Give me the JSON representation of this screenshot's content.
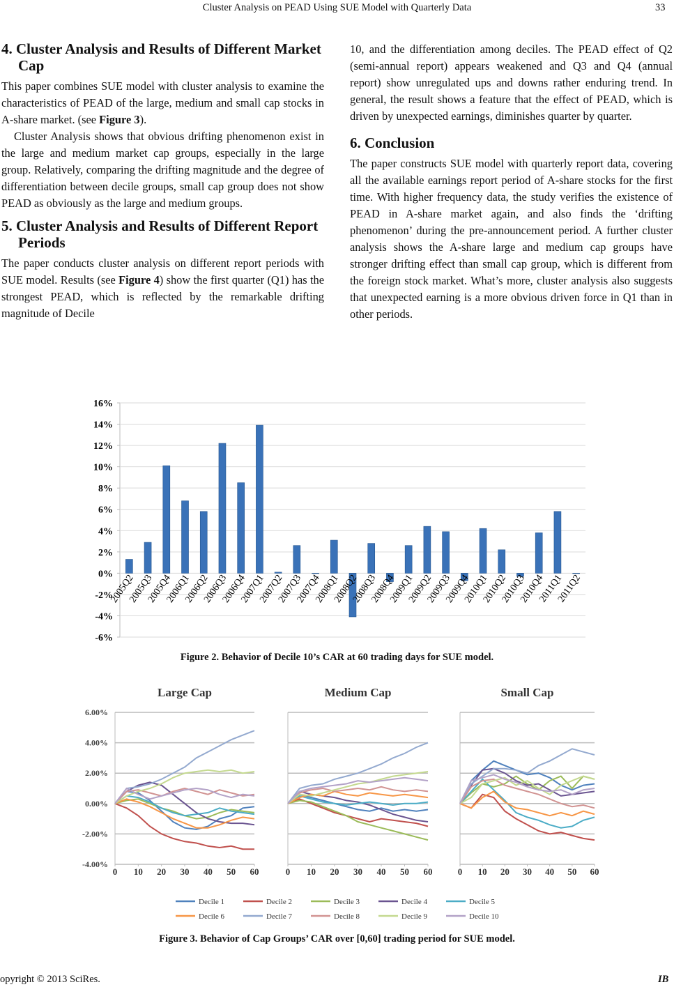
{
  "header": {
    "title": "Cluster Analysis on PEAD Using SUE Model with Quarterly Data",
    "page": "33"
  },
  "left_column": {
    "sections": [
      {
        "heading": "4. Cluster Analysis and Results of Different Market Cap",
        "paragraphs": [
          [
            "This paper combines SUE model with cluster analysis to examine the characteristics of PEAD of the large, medium and small cap stocks in A-share market. (see ",
            "Figure 3",
            ")."
          ],
          [
            "Cluster Analysis shows that obvious drifting phenomenon exist in the large and medium market cap groups, especially in the large group. Relatively, comparing the drifting magnitude and the degree of differentiation between decile groups, small cap group does not show PEAD as obviously as the large and medium groups."
          ]
        ]
      },
      {
        "heading": "5. Cluster Analysis and Results of Different Report Periods",
        "paragraphs": [
          [
            "The paper conducts cluster analysis on different report periods with SUE model. Results (see ",
            "Figure 4",
            ") show the first quarter (Q1) has the strongest PEAD, which is reflected by the remarkable drifting magnitude of Decile"
          ]
        ]
      }
    ]
  },
  "right_column": {
    "paragraphs": [
      [
        "10, and the differentiation among deciles. The PEAD effect of Q2 (semi-annual report) appears weakened and Q3 and Q4 (annual report) show unregulated ups and downs rather enduring trend. In general, the result shows a feature that the effect of PEAD, which is driven by unexpected earnings, diminishes quarter by quarter."
      ]
    ],
    "sections": [
      {
        "heading": "6. Conclusion",
        "paragraphs": [
          [
            "The paper constructs SUE model with quarterly report data, covering all the available earnings report period of A-share stocks for the first time. With higher frequency data, the study verifies the existence of PEAD in A-share market again, and also finds the ‘drifting phenomenon’ during the pre-announcement period. A further cluster analysis shows the A-share large and medium cap groups have stronger drifting effect than small cap group, which is different from the foreign stock market. What’s more, cluster analysis also suggests that unexpected earning is a more obvious driven force in Q1 than in other periods."
          ]
        ]
      }
    ]
  },
  "chart_data": [
    {
      "type": "bar",
      "color": "#3a72b8",
      "categories": [
        "2005Q2",
        "2005Q3",
        "2005Q4",
        "2006Q1",
        "2006Q2",
        "2006Q3",
        "2006Q4",
        "2007Q1",
        "2007Q2",
        "2007Q3",
        "2007Q4",
        "2008Q1",
        "2008Q2",
        "2008Q3",
        "2008Q4",
        "2009Q1",
        "2009Q2",
        "2009Q3",
        "2009Q4",
        "2010Q1",
        "2010Q2",
        "2010Q3",
        "2010Q4",
        "2011Q1",
        "2011Q2"
      ],
      "values": [
        1.3,
        2.9,
        10.1,
        6.8,
        5.8,
        12.2,
        8.5,
        13.9,
        0.1,
        2.6,
        0.0,
        3.1,
        -4.1,
        2.8,
        -0.8,
        2.6,
        4.4,
        3.9,
        -0.7,
        4.2,
        2.2,
        -0.3,
        3.8,
        5.8,
        0.0
      ],
      "ylim": [
        -6,
        16
      ],
      "yticks": [
        {
          "value": -6,
          "label": "-6%"
        },
        {
          "value": -4,
          "label": "-4%"
        },
        {
          "value": -2,
          "label": "-2%"
        },
        {
          "value": 0,
          "label": "0%"
        },
        {
          "value": 2,
          "label": "2%"
        },
        {
          "value": 4,
          "label": "4%"
        },
        {
          "value": 6,
          "label": "6%"
        },
        {
          "value": 8,
          "label": "8%"
        },
        {
          "value": 10,
          "label": "10%"
        },
        {
          "value": 12,
          "label": "12%"
        },
        {
          "value": 14,
          "label": "14%"
        },
        {
          "value": 16,
          "label": "16%"
        }
      ],
      "grid": true
    },
    {
      "type": "line",
      "title": "Large Cap",
      "x": [
        0,
        5,
        10,
        15,
        20,
        25,
        30,
        35,
        40,
        45,
        50,
        55,
        60
      ],
      "xlim": [
        0,
        60
      ],
      "xticks": [
        0,
        10,
        20,
        30,
        40,
        50,
        60
      ],
      "ylim": [
        -4,
        6
      ],
      "yticks": [
        {
          "value": -4,
          "label": "-4.00%"
        },
        {
          "value": -2,
          "label": "-2.00%"
        },
        {
          "value": 0,
          "label": "0.00%"
        },
        {
          "value": 2,
          "label": "2.00%"
        },
        {
          "value": 4,
          "label": "4.00%"
        },
        {
          "value": 6,
          "label": "6.00%"
        }
      ],
      "ytick_labels": true,
      "grid": true,
      "series": [
        {
          "values": [
            0,
            0.8,
            0.7,
            0.2,
            -0.5,
            -1.2,
            -1.6,
            -1.7,
            -1.5,
            -1.0,
            -0.8,
            -0.3,
            -0.2
          ]
        },
        {
          "values": [
            0,
            -0.3,
            -0.8,
            -1.5,
            -2.0,
            -2.3,
            -2.5,
            -2.6,
            -2.8,
            -2.9,
            -2.8,
            -3.0,
            -3.0
          ]
        },
        {
          "values": [
            0,
            0.2,
            0.3,
            0.0,
            -0.3,
            -0.5,
            -0.8,
            -1.0,
            -0.9,
            -0.6,
            -0.4,
            -0.5,
            -0.6
          ]
        },
        {
          "values": [
            0,
            0.8,
            1.2,
            1.4,
            1.2,
            0.6,
            0.0,
            -0.6,
            -1.0,
            -1.2,
            -1.3,
            -1.3,
            -1.4
          ]
        },
        {
          "values": [
            0,
            0.5,
            0.4,
            0.1,
            -0.3,
            -0.6,
            -0.8,
            -0.7,
            -0.6,
            -0.3,
            -0.5,
            -0.6,
            -0.7
          ]
        },
        {
          "values": [
            0,
            0.3,
            0.1,
            -0.2,
            -0.6,
            -1.0,
            -1.3,
            -1.6,
            -1.6,
            -1.4,
            -1.1,
            -0.9,
            -1.0
          ]
        },
        {
          "values": [
            0,
            1.0,
            1.1,
            1.3,
            1.6,
            2.0,
            2.4,
            3.0,
            3.4,
            3.8,
            4.2,
            4.5,
            4.8
          ]
        },
        {
          "values": [
            0,
            0.8,
            0.9,
            0.7,
            0.5,
            0.8,
            1.0,
            0.8,
            0.6,
            0.9,
            0.7,
            0.5,
            0.6
          ]
        },
        {
          "values": [
            0,
            0.5,
            0.8,
            1.0,
            1.3,
            1.7,
            2.0,
            2.1,
            2.2,
            2.1,
            2.2,
            2.0,
            2.1
          ]
        },
        {
          "values": [
            0,
            1.0,
            0.6,
            0.3,
            0.5,
            0.7,
            0.9,
            1.0,
            0.9,
            0.6,
            0.4,
            0.6,
            0.5
          ]
        }
      ]
    },
    {
      "type": "line",
      "title": "Medium Cap",
      "x": [
        0,
        5,
        10,
        15,
        20,
        25,
        30,
        35,
        40,
        45,
        50,
        55,
        60
      ],
      "xlim": [
        0,
        60
      ],
      "xticks": [
        0,
        10,
        20,
        30,
        40,
        50,
        60
      ],
      "ylim": [
        -4,
        6
      ],
      "yticks": [
        -4,
        -2,
        0,
        2,
        4,
        6
      ],
      "ytick_labels": false,
      "grid": true,
      "series": [
        {
          "values": [
            0,
            0.6,
            0.4,
            0.2,
            0.0,
            -0.2,
            -0.4,
            -0.5,
            -0.3,
            -0.5,
            -0.4,
            -0.5,
            -0.4
          ]
        },
        {
          "values": [
            0,
            0.3,
            0.0,
            -0.3,
            -0.6,
            -0.8,
            -1.0,
            -1.2,
            -1.0,
            -1.1,
            -1.2,
            -1.3,
            -1.5
          ]
        },
        {
          "values": [
            0,
            0.2,
            0.1,
            -0.2,
            -0.5,
            -0.8,
            -1.2,
            -1.4,
            -1.6,
            -1.8,
            -2.0,
            -2.2,
            -2.4
          ]
        },
        {
          "values": [
            0,
            0.8,
            0.6,
            0.5,
            0.4,
            0.2,
            0.1,
            -0.1,
            -0.4,
            -0.7,
            -0.9,
            -1.1,
            -1.2
          ]
        },
        {
          "values": [
            0,
            0.5,
            0.3,
            0.1,
            0.0,
            -0.1,
            0.0,
            0.1,
            0.0,
            -0.1,
            0.0,
            0.0,
            0.1
          ]
        },
        {
          "values": [
            0,
            0.4,
            0.6,
            0.5,
            0.8,
            0.6,
            0.5,
            0.7,
            0.6,
            0.5,
            0.6,
            0.5,
            0.4
          ]
        },
        {
          "values": [
            0,
            1.0,
            1.2,
            1.3,
            1.6,
            1.8,
            2.0,
            2.3,
            2.6,
            3.0,
            3.3,
            3.7,
            4.0
          ]
        },
        {
          "values": [
            0,
            0.7,
            0.9,
            1.0,
            0.8,
            0.9,
            1.0,
            0.9,
            1.1,
            0.9,
            0.8,
            0.9,
            0.8
          ]
        },
        {
          "values": [
            0,
            0.6,
            0.5,
            0.7,
            0.9,
            1.1,
            1.3,
            1.4,
            1.6,
            1.8,
            1.9,
            2.0,
            2.1
          ]
        },
        {
          "values": [
            0,
            0.8,
            1.0,
            1.1,
            1.2,
            1.3,
            1.5,
            1.4,
            1.5,
            1.6,
            1.7,
            1.6,
            1.5
          ]
        }
      ]
    },
    {
      "type": "line",
      "title": "Small Cap",
      "x": [
        0,
        5,
        10,
        15,
        20,
        25,
        30,
        35,
        40,
        45,
        50,
        55,
        60
      ],
      "xlim": [
        0,
        60
      ],
      "xticks": [
        0,
        10,
        20,
        30,
        40,
        50,
        60
      ],
      "ylim": [
        -4,
        6
      ],
      "yticks": [
        -4,
        -2,
        0,
        2,
        4,
        6
      ],
      "ytick_labels": false,
      "grid": true,
      "series": [
        {
          "values": [
            0,
            1.5,
            2.2,
            2.8,
            2.5,
            2.2,
            1.9,
            2.0,
            1.7,
            1.2,
            0.9,
            1.2,
            1.3
          ]
        },
        {
          "values": [
            0,
            -0.3,
            0.6,
            0.4,
            -0.5,
            -1.0,
            -1.4,
            -1.8,
            -2.0,
            -1.9,
            -2.1,
            -2.3,
            -2.4
          ]
        },
        {
          "values": [
            0,
            0.7,
            1.3,
            1.1,
            1.3,
            1.8,
            1.3,
            0.9,
            1.5,
            1.8,
            1.0,
            1.8,
            1.6
          ]
        },
        {
          "values": [
            0,
            1.2,
            2.2,
            2.3,
            2.0,
            1.5,
            1.2,
            1.3,
            0.9,
            0.5,
            0.6,
            0.7,
            0.8
          ]
        },
        {
          "values": [
            0,
            0.8,
            1.6,
            0.9,
            0.2,
            -0.6,
            -0.9,
            -1.1,
            -1.4,
            -1.6,
            -1.5,
            -1.1,
            -0.9
          ]
        },
        {
          "values": [
            0,
            -0.3,
            0.4,
            0.8,
            0.1,
            -0.3,
            -0.4,
            -0.6,
            -0.8,
            -0.6,
            -0.8,
            -0.5,
            -0.7
          ]
        },
        {
          "values": [
            0,
            1.3,
            1.8,
            2.3,
            2.3,
            2.2,
            2.0,
            2.5,
            2.8,
            3.2,
            3.6,
            3.4,
            3.2
          ]
        },
        {
          "values": [
            0,
            1.1,
            1.5,
            1.6,
            1.2,
            1.0,
            0.8,
            0.6,
            0.3,
            0.0,
            -0.2,
            -0.1,
            -0.3
          ]
        },
        {
          "values": [
            0,
            0.4,
            1.3,
            1.5,
            1.7,
            1.2,
            1.5,
            1.0,
            0.6,
            1.2,
            1.5,
            1.8,
            1.6
          ]
        },
        {
          "values": [
            0,
            1.5,
            1.7,
            1.9,
            1.6,
            1.4,
            1.1,
            0.9,
            0.8,
            0.9,
            0.6,
            0.9,
            1.0
          ]
        }
      ]
    }
  ],
  "figure3_legend": [
    {
      "name": "Decile 1",
      "color": "#4f81bd"
    },
    {
      "name": "Decile 2",
      "color": "#c0504d"
    },
    {
      "name": "Decile 3",
      "color": "#9bbb59"
    },
    {
      "name": "Decile 4",
      "color": "#6a5490"
    },
    {
      "name": "Decile 5",
      "color": "#4bacc6"
    },
    {
      "name": "Decile 6",
      "color": "#f79646"
    },
    {
      "name": "Decile 7",
      "color": "#93a9cf"
    },
    {
      "name": "Decile 8",
      "color": "#d19392"
    },
    {
      "name": "Decile 9",
      "color": "#c4d98f"
    },
    {
      "name": "Decile 10",
      "color": "#b3a2c7"
    }
  ],
  "captions": [
    "Figure 2. Behavior of Decile 10’s CAR at 60 trading days for SUE model.",
    "Figure 3. Behavior of Cap Groups’ CAR over [0,60] trading period for SUE model."
  ],
  "footer": {
    "copyright": "opyright © 2013 SciRes.",
    "journal": "IB"
  }
}
